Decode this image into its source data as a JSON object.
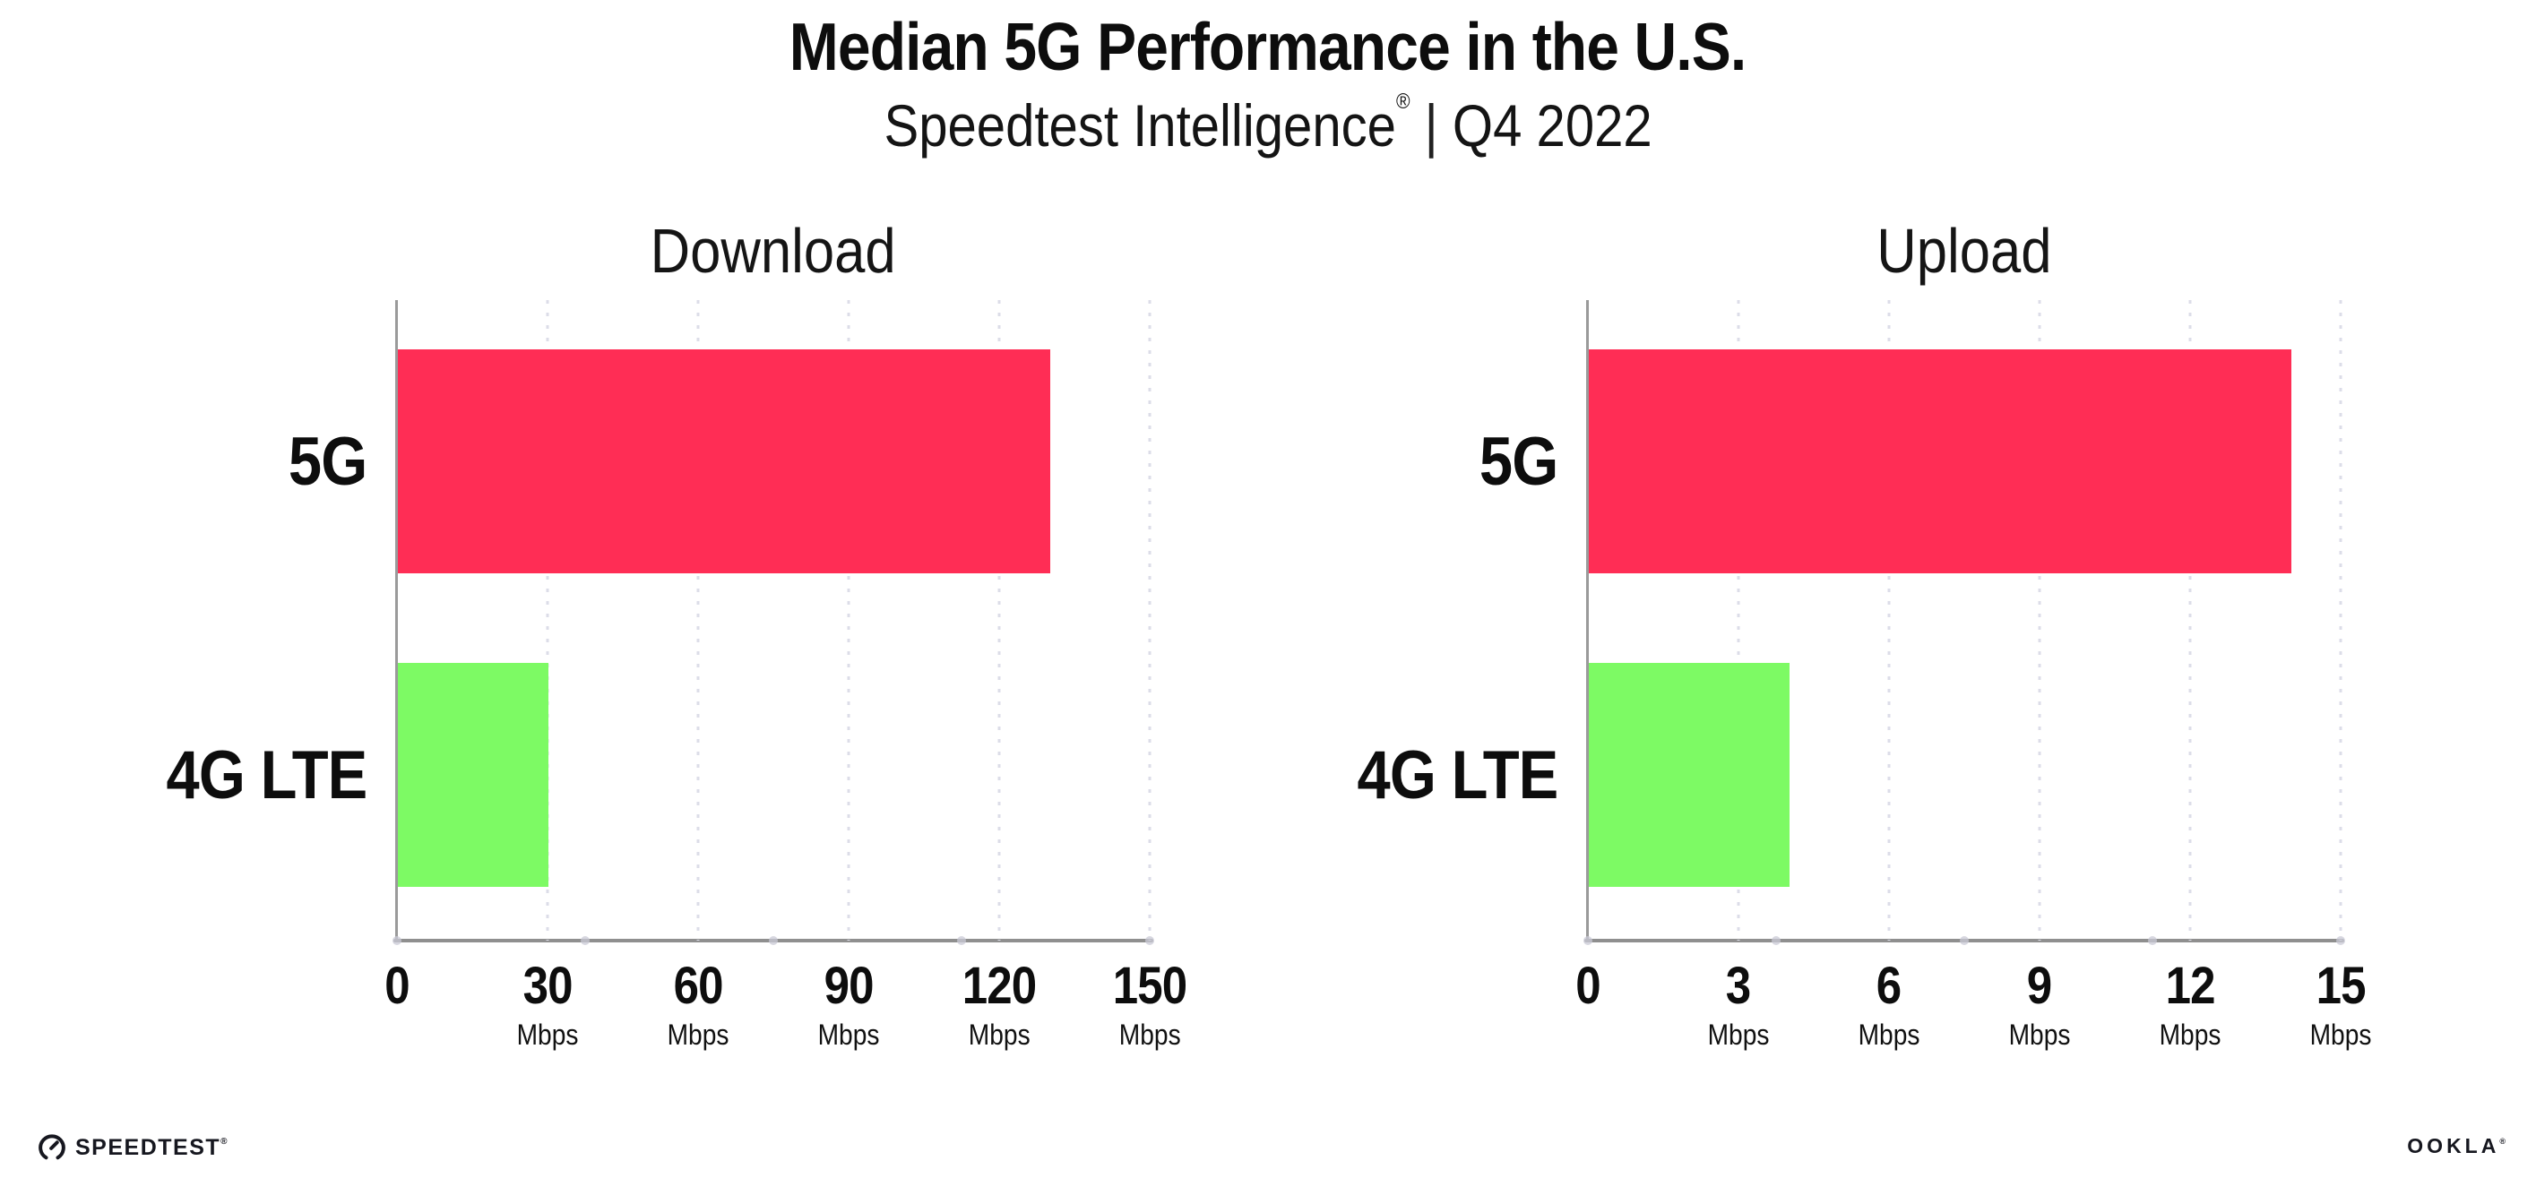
{
  "header": {
    "title": "Median 5G Performance in the U.S.",
    "subtitle_brand": "Speedtest Intelligence",
    "subtitle_reg": "®",
    "subtitle_separator": " | ",
    "subtitle_period": "Q4 2022"
  },
  "chart_data": [
    {
      "type": "bar",
      "orientation": "horizontal",
      "title": "Download",
      "categories": [
        "5G",
        "4G LTE"
      ],
      "values": [
        130,
        30
      ],
      "unit": "Mbps",
      "xlim": [
        0,
        150
      ],
      "xticks": [
        0,
        30,
        60,
        90,
        120,
        150
      ],
      "bar_colors": [
        "#FF2D55",
        "#7DFA64"
      ],
      "grid": "dotted-vertical-gridlines",
      "legend": "none"
    },
    {
      "type": "bar",
      "orientation": "horizontal",
      "title": "Upload",
      "categories": [
        "5G",
        "4G LTE"
      ],
      "values": [
        14,
        4
      ],
      "unit": "Mbps",
      "xlim": [
        0,
        15
      ],
      "xticks": [
        0,
        3,
        6,
        9,
        12,
        15
      ],
      "bar_colors": [
        "#FF2D55",
        "#7DFA64"
      ],
      "grid": "dotted-vertical-gridlines",
      "legend": "none"
    }
  ],
  "footer": {
    "speedtest_label": "SPEEDTEST",
    "speedtest_reg": "®",
    "ookla_label": "OOKLA",
    "ookla_reg": "®"
  },
  "colors": {
    "bar_5g": "#FF2D55",
    "bar_4g_lte": "#7DFA64",
    "axis_line": "#8f8f8f",
    "gridline_dots": "#dcdde8",
    "text": "#0d0d0d"
  }
}
